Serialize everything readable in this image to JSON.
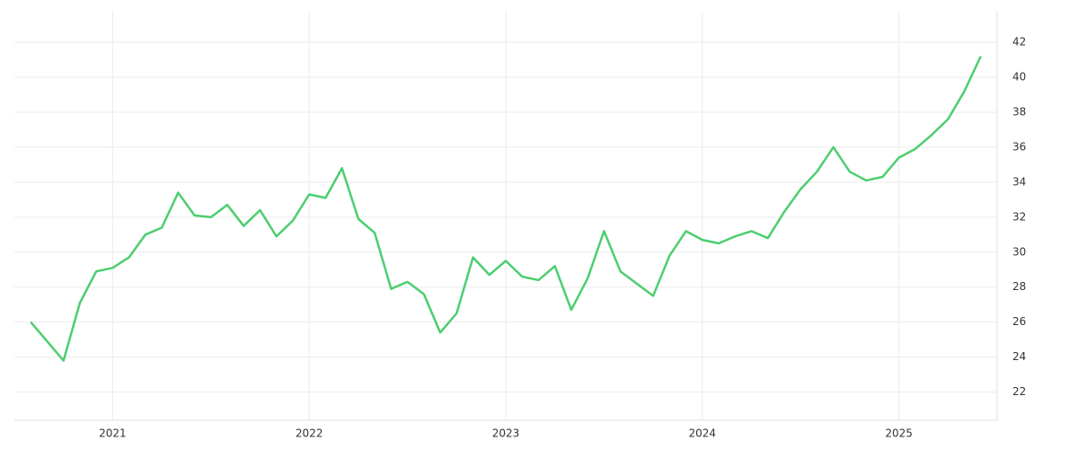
{
  "chart_data": {
    "type": "line",
    "x": [
      "2020-08",
      "2020-09",
      "2020-10",
      "2020-11",
      "2020-12",
      "2021-01",
      "2021-02",
      "2021-03",
      "2021-04",
      "2021-05",
      "2021-06",
      "2021-07",
      "2021-08",
      "2021-09",
      "2021-10",
      "2021-11",
      "2021-12",
      "2022-01",
      "2022-02",
      "2022-03",
      "2022-04",
      "2022-05",
      "2022-06",
      "2022-07",
      "2022-08",
      "2022-09",
      "2022-10",
      "2022-11",
      "2022-12",
      "2023-01",
      "2023-02",
      "2023-03",
      "2023-04",
      "2023-05",
      "2023-06",
      "2023-07",
      "2023-08",
      "2023-09",
      "2023-10",
      "2023-11",
      "2023-12",
      "2024-01",
      "2024-02",
      "2024-03",
      "2024-04",
      "2024-05",
      "2024-06",
      "2024-07",
      "2024-08",
      "2024-09",
      "2024-10",
      "2024-11",
      "2024-12",
      "2025-01",
      "2025-02",
      "2025-03",
      "2025-04",
      "2025-05",
      "2025-06"
    ],
    "values": [
      26.0,
      24.9,
      23.8,
      27.1,
      28.9,
      29.1,
      29.7,
      31.0,
      31.4,
      33.4,
      32.1,
      32.0,
      32.7,
      31.5,
      32.4,
      30.9,
      31.8,
      33.3,
      33.1,
      34.8,
      31.9,
      31.1,
      27.9,
      28.3,
      27.6,
      25.4,
      26.5,
      29.7,
      28.7,
      29.5,
      28.6,
      28.4,
      29.2,
      26.7,
      28.5,
      31.2,
      28.9,
      28.2,
      27.5,
      29.8,
      31.2,
      30.7,
      30.5,
      30.9,
      31.2,
      30.8,
      32.3,
      33.6,
      34.6,
      36.0,
      34.6,
      34.1,
      34.3,
      35.4,
      35.9,
      36.7,
      37.6,
      39.2,
      41.2
    ],
    "color": "#4cce6f",
    "xlim": [
      2020.5,
      2025.5
    ],
    "xticks": [
      2021,
      2022,
      2023,
      2024,
      2025
    ],
    "ylim": [
      20.9,
      43.8
    ],
    "yticks": [
      22,
      24,
      26,
      28,
      30,
      32,
      34,
      36,
      38,
      40,
      42
    ],
    "grid": true
  }
}
